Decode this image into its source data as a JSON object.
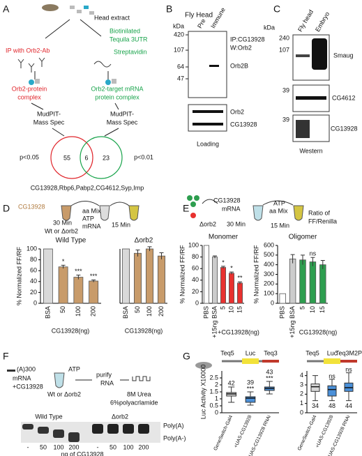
{
  "panel_labels": [
    "A",
    "B",
    "C",
    "D",
    "E",
    "F",
    "G"
  ],
  "panels": {
    "A": {
      "head_extract": "Head extract",
      "ip": "IP with Orb2-Ab",
      "biotin": [
        "Biotinilated",
        "Tequila 3UTR"
      ],
      "streptavidin": "Streptavidin",
      "orb2_complex": [
        "Orb2-protein",
        "complex"
      ],
      "target_complex": [
        "Orb2-target mRNA",
        "protein complex"
      ],
      "mass_spec": [
        [
          "MudPIT-",
          "Mass Spec"
        ],
        [
          "MudPIT-",
          "Mass Spec"
        ]
      ],
      "p_left": "p<0.05",
      "p_right": "p<0.01",
      "venn": [
        55,
        6,
        23
      ],
      "shared": "CG13928,Rbp6,Pabp2,CG4612,Syp,Imp"
    },
    "B": {
      "title": "Fly Head",
      "kda": "kDa",
      "lanes": [
        "Pre",
        "Immune"
      ],
      "ip": "IP:CG13928",
      "w": "W:Orb2",
      "markers": [
        420,
        107,
        64,
        47
      ],
      "bands": [
        "Orb2B",
        "Orb2",
        "CG13928"
      ],
      "footer": "Loading"
    },
    "C": {
      "kda": "kDa",
      "lanes": [
        "Fly head",
        "Embryo"
      ],
      "markers": [
        240,
        107,
        39,
        39
      ],
      "bands": [
        "Smaug",
        "CG4612",
        "CG13928"
      ],
      "footer": "Western"
    },
    "D": {
      "protein": "CG13928",
      "t1": "30 Min",
      "cond": "Wt or Δorb2",
      "mix": [
        "aa Mix",
        "ATP",
        "mRNA"
      ],
      "t2": "15 Min"
    },
    "E": {
      "protein": "CG13928",
      "mrna": "mRNA",
      "cond": "Δorb2",
      "t1": "30 Min",
      "mix": [
        "ATP",
        "aa Mix"
      ],
      "t2": "15 Min",
      "result": [
        "Ratio of",
        "FF/Renilla"
      ]
    },
    "F": {
      "substrate": [
        "(A)300",
        "mRNA",
        "+CG13928"
      ],
      "atp": "ATP",
      "cond": "Wt or Δorb2",
      "purify": [
        "purify",
        "RNA"
      ],
      "gel": [
        "8M Urea",
        "6%polyacrlamide"
      ],
      "groups": [
        "Wild Type",
        "Δorb2"
      ],
      "bands": [
        "Poly(A)",
        "Poly(A-)"
      ],
      "lanes": [
        "-",
        "50",
        "100",
        "200",
        "-",
        "50",
        "100",
        "200"
      ],
      "x_label": "ng of CG13928"
    }
  },
  "chart_data": [
    {
      "type": "bar",
      "title": "Wild Type",
      "y_label": "% Normalized FF/RF",
      "x_label": "CG13928(ng)",
      "categories": [
        "BSA",
        "50",
        "100",
        "200"
      ],
      "values": [
        100,
        67,
        48,
        41
      ],
      "errors": [
        null,
        3,
        4,
        2
      ],
      "colors": [
        "#d9d9d9",
        "#c89b6a",
        "#c89b6a",
        "#c89b6a"
      ],
      "annotations": [
        null,
        "*",
        "***",
        "***"
      ],
      "ylim": [
        0,
        100
      ],
      "yticks": [
        0,
        20,
        40,
        60,
        80,
        100
      ]
    },
    {
      "type": "bar",
      "title": "Δorb2",
      "x_label": "CG13928(ng)",
      "categories": [
        "BSA",
        "50",
        "100",
        "200"
      ],
      "values": [
        100,
        92,
        100,
        87
      ],
      "errors": [
        null,
        6,
        4,
        6
      ],
      "colors": [
        "#d9d9d9",
        "#c89b6a",
        "#c89b6a",
        "#c89b6a"
      ],
      "ylim": [
        0,
        100
      ]
    },
    {
      "type": "bar",
      "title": "Monomer",
      "y_label": "% Normalized FF/RF",
      "x_label": "+CG13928(ng)",
      "categories": [
        "PBS",
        "+15ng BSA",
        "5",
        "10",
        "15"
      ],
      "values": [
        100,
        80,
        62,
        52,
        35
      ],
      "errors": [
        null,
        2,
        2,
        2,
        2
      ],
      "colors": [
        "#ffffff",
        "#cccccc",
        "#e8312f",
        "#e8312f",
        "#e8312f"
      ],
      "annotations": [
        null,
        null,
        "*",
        "*",
        "**"
      ],
      "ylim": [
        0,
        100
      ],
      "yticks": [
        0,
        20,
        40,
        60,
        80,
        100
      ]
    },
    {
      "type": "bar",
      "title": "Oligomer",
      "y_label": "% Normalized FF/RF",
      "x_label": "CG13928(ng)",
      "categories": [
        "PBS",
        "+15ng BSA",
        "5",
        "10",
        "15"
      ],
      "values": [
        100,
        460,
        450,
        430,
        400
      ],
      "errors": [
        null,
        45,
        50,
        45,
        45
      ],
      "colors": [
        "#ffffff",
        "#cccccc",
        "#2e9e4f",
        "#2e9e4f",
        "#2e9e4f"
      ],
      "annotations": [
        null,
        null,
        null,
        "ns",
        null
      ],
      "ylim": [
        0,
        600
      ],
      "yticks": [
        0,
        100,
        200,
        300,
        400,
        500,
        600
      ]
    },
    {
      "type": "box",
      "construct": [
        "Teq5",
        "Luc",
        "Teq3"
      ],
      "y_label": "Luc Activity X10000",
      "categories": [
        "GeneSwitch-Gal4",
        "+UAS-CG13928",
        "+UAS-CG13928 RNAi"
      ],
      "whisker_low": [
        0.75,
        0.55,
        1.35
      ],
      "q1": [
        1.2,
        0.75,
        1.6
      ],
      "median": [
        1.35,
        1.05,
        1.75
      ],
      "q3": [
        1.45,
        1.15,
        1.85
      ],
      "whisker_high": [
        1.85,
        1.5,
        2.25
      ],
      "n": [
        42,
        39,
        43
      ],
      "annotations": [
        null,
        "***",
        "***"
      ],
      "colors": [
        "#d9d9d9",
        "#4a90d9",
        "#4a90d9"
      ],
      "ylim": [
        0,
        3
      ],
      "yticks": [
        0,
        0.5,
        1,
        1.5,
        2,
        2.5
      ]
    },
    {
      "type": "box",
      "construct": [
        "Teq5",
        "Luc",
        "Teq3M2P"
      ],
      "categories": [
        "GeneSwitch-Gal4",
        "+UAS-CG13928",
        "+UAS-CG13928 RNAi"
      ],
      "whisker_low": [
        1.3,
        1.3,
        1.3
      ],
      "q1": [
        2.3,
        1.8,
        2.3
      ],
      "median": [
        2.8,
        2.5,
        2.7
      ],
      "q3": [
        3.1,
        2.9,
        3.2
      ],
      "whisker_high": [
        4.0,
        3.6,
        4.3
      ],
      "n": [
        34,
        48,
        44
      ],
      "annotations": [
        null,
        "ns",
        "ns"
      ],
      "colors": [
        "#d9d9d9",
        "#4a90d9",
        "#4a90d9"
      ],
      "ylim": [
        0,
        4.5
      ],
      "yticks": [
        0,
        1,
        2,
        3,
        4
      ]
    }
  ]
}
